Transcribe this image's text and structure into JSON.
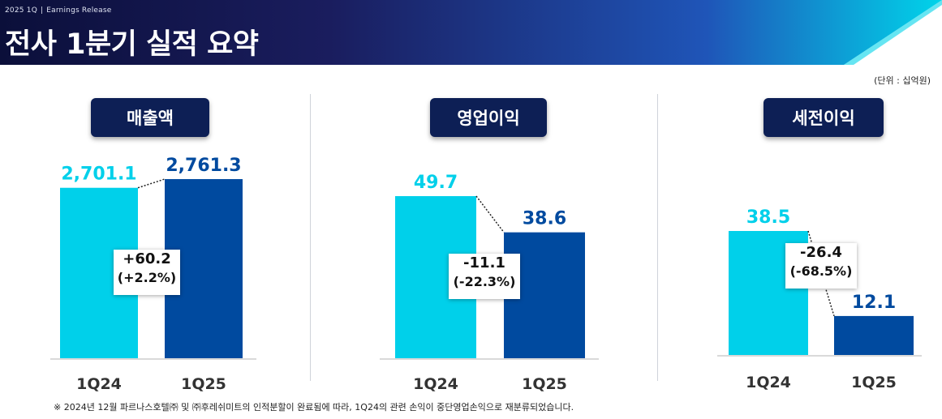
{
  "header": {
    "period": "2025 1Q",
    "separator": "|",
    "doc_type": "Earnings Release",
    "title": "전사 1분기 실적 요약"
  },
  "unit_note": "(단위 : 십억원)",
  "colors": {
    "header_dark": "#161a52",
    "header_accent": "#00d4ea",
    "bar_prev": "#00d0ea",
    "bar_curr": "#004a9f",
    "badge": "#0d1f55"
  },
  "footnote": "※ 2024년 12월 파르나스호텔㈜ 및 ㈜후레쉬미트의 인적분할이 완료됨에 따라, 1Q24의 관련 손익이 중단영업손익으로 재분류되었습니다.",
  "panels": [
    {
      "name": "매출액",
      "delta": "+60.2",
      "delta_pct": "(+2.2%)",
      "labels": [
        "2,701.1",
        "2,761.3"
      ]
    },
    {
      "name": "영업이익",
      "delta": "-11.1",
      "delta_pct": "(-22.3%)",
      "labels": [
        "49.7",
        "38.6"
      ]
    },
    {
      "name": "세전이익",
      "delta": "-26.4",
      "delta_pct": "(-68.5%)",
      "labels": [
        "38.5",
        "12.1"
      ]
    }
  ],
  "chart_data": [
    {
      "type": "bar",
      "title": "매출액",
      "categories": [
        "1Q24",
        "1Q25"
      ],
      "values": [
        2701.1,
        2761.3
      ]
    },
    {
      "type": "bar",
      "title": "영업이익",
      "categories": [
        "1Q24",
        "1Q25"
      ],
      "values": [
        49.7,
        38.6
      ]
    },
    {
      "type": "bar",
      "title": "세전이익",
      "categories": [
        "1Q24",
        "1Q25"
      ],
      "values": [
        38.5,
        12.1
      ]
    }
  ]
}
